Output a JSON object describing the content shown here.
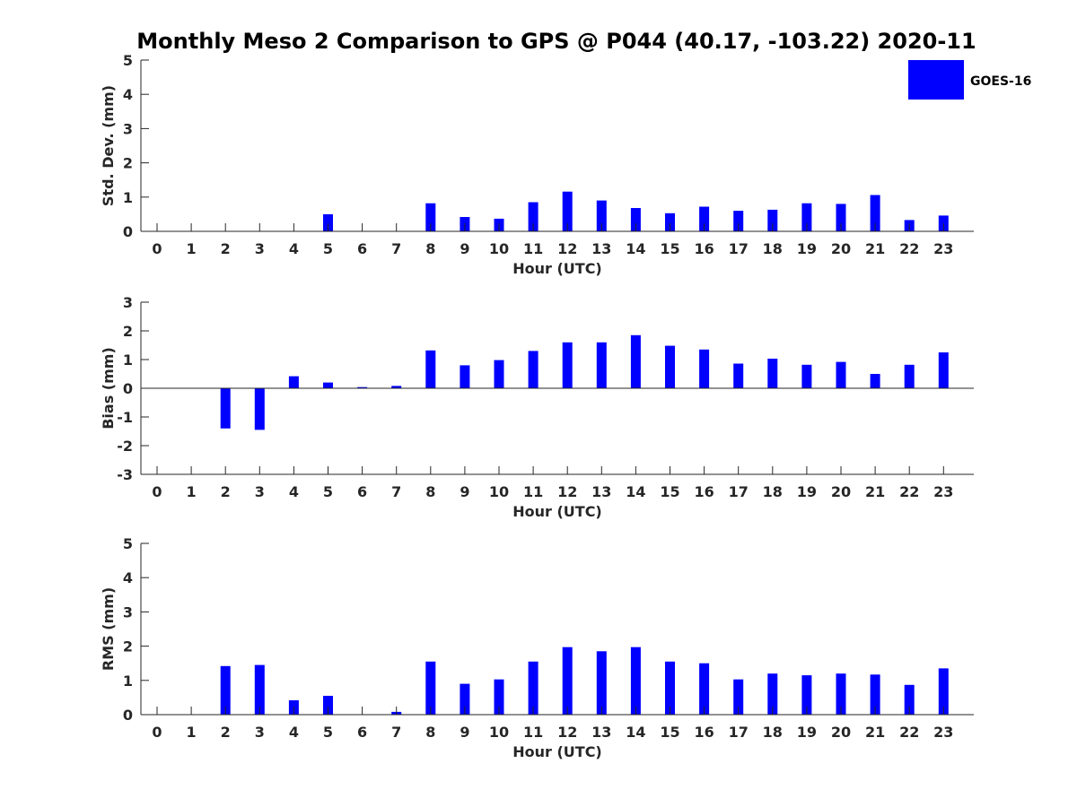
{
  "figure_title": "Monthly Meso 2 Comparison to GPS @ P044 (40.17, -103.22) 2020-11",
  "legend": {
    "label": "GOES-16",
    "color": "#0000FF"
  },
  "chart_data": [
    {
      "type": "bar",
      "categories": [
        "0",
        "1",
        "2",
        "3",
        "4",
        "5",
        "6",
        "7",
        "8",
        "9",
        "10",
        "11",
        "12",
        "13",
        "14",
        "15",
        "16",
        "17",
        "18",
        "19",
        "20",
        "21",
        "22",
        "23"
      ],
      "series": [
        {
          "name": "GOES-16",
          "values": [
            null,
            null,
            null,
            null,
            null,
            0.5,
            null,
            null,
            0.82,
            0.42,
            0.37,
            0.85,
            1.16,
            0.9,
            0.68,
            0.53,
            0.72,
            0.6,
            0.63,
            0.82,
            0.8,
            1.06,
            0.33,
            0.46
          ]
        }
      ],
      "xlabel": "Hour (UTC)",
      "ylabel": "Std. Dev. (mm)",
      "ylim": [
        0,
        5
      ],
      "yticks": [
        0,
        1,
        2,
        3,
        4,
        5
      ],
      "grid": false,
      "legend_position": "top-right",
      "zero_line": false
    },
    {
      "type": "bar",
      "categories": [
        "0",
        "1",
        "2",
        "3",
        "4",
        "5",
        "6",
        "7",
        "8",
        "9",
        "10",
        "11",
        "12",
        "13",
        "14",
        "15",
        "16",
        "17",
        "18",
        "19",
        "20",
        "21",
        "22",
        "23"
      ],
      "series": [
        {
          "name": "GOES-16",
          "values": [
            null,
            null,
            -1.4,
            -1.45,
            0.42,
            0.2,
            0.04,
            0.08,
            1.32,
            0.8,
            0.98,
            1.3,
            1.6,
            1.6,
            1.85,
            1.48,
            1.35,
            0.86,
            1.03,
            0.82,
            0.92,
            0.5,
            0.82,
            1.25
          ]
        }
      ],
      "xlabel": "Hour (UTC)",
      "ylabel": "Bias (mm)",
      "ylim": [
        -3,
        3
      ],
      "yticks": [
        -3,
        -2,
        -1,
        0,
        1,
        2,
        3
      ],
      "grid": false,
      "zero_line": true
    },
    {
      "type": "bar",
      "categories": [
        "0",
        "1",
        "2",
        "3",
        "4",
        "5",
        "6",
        "7",
        "8",
        "9",
        "10",
        "11",
        "12",
        "13",
        "14",
        "15",
        "16",
        "17",
        "18",
        "19",
        "20",
        "21",
        "22",
        "23"
      ],
      "series": [
        {
          "name": "GOES-16",
          "values": [
            null,
            null,
            1.42,
            1.45,
            0.42,
            0.55,
            null,
            0.08,
            1.55,
            0.9,
            1.03,
            1.55,
            1.97,
            1.85,
            1.97,
            1.55,
            1.5,
            1.03,
            1.2,
            1.15,
            1.2,
            1.17,
            0.87,
            1.35
          ]
        }
      ],
      "xlabel": "Hour (UTC)",
      "ylabel": "RMS (mm)",
      "ylim": [
        0,
        5
      ],
      "yticks": [
        0,
        1,
        2,
        3,
        4,
        5
      ],
      "grid": false,
      "zero_line": false
    }
  ]
}
